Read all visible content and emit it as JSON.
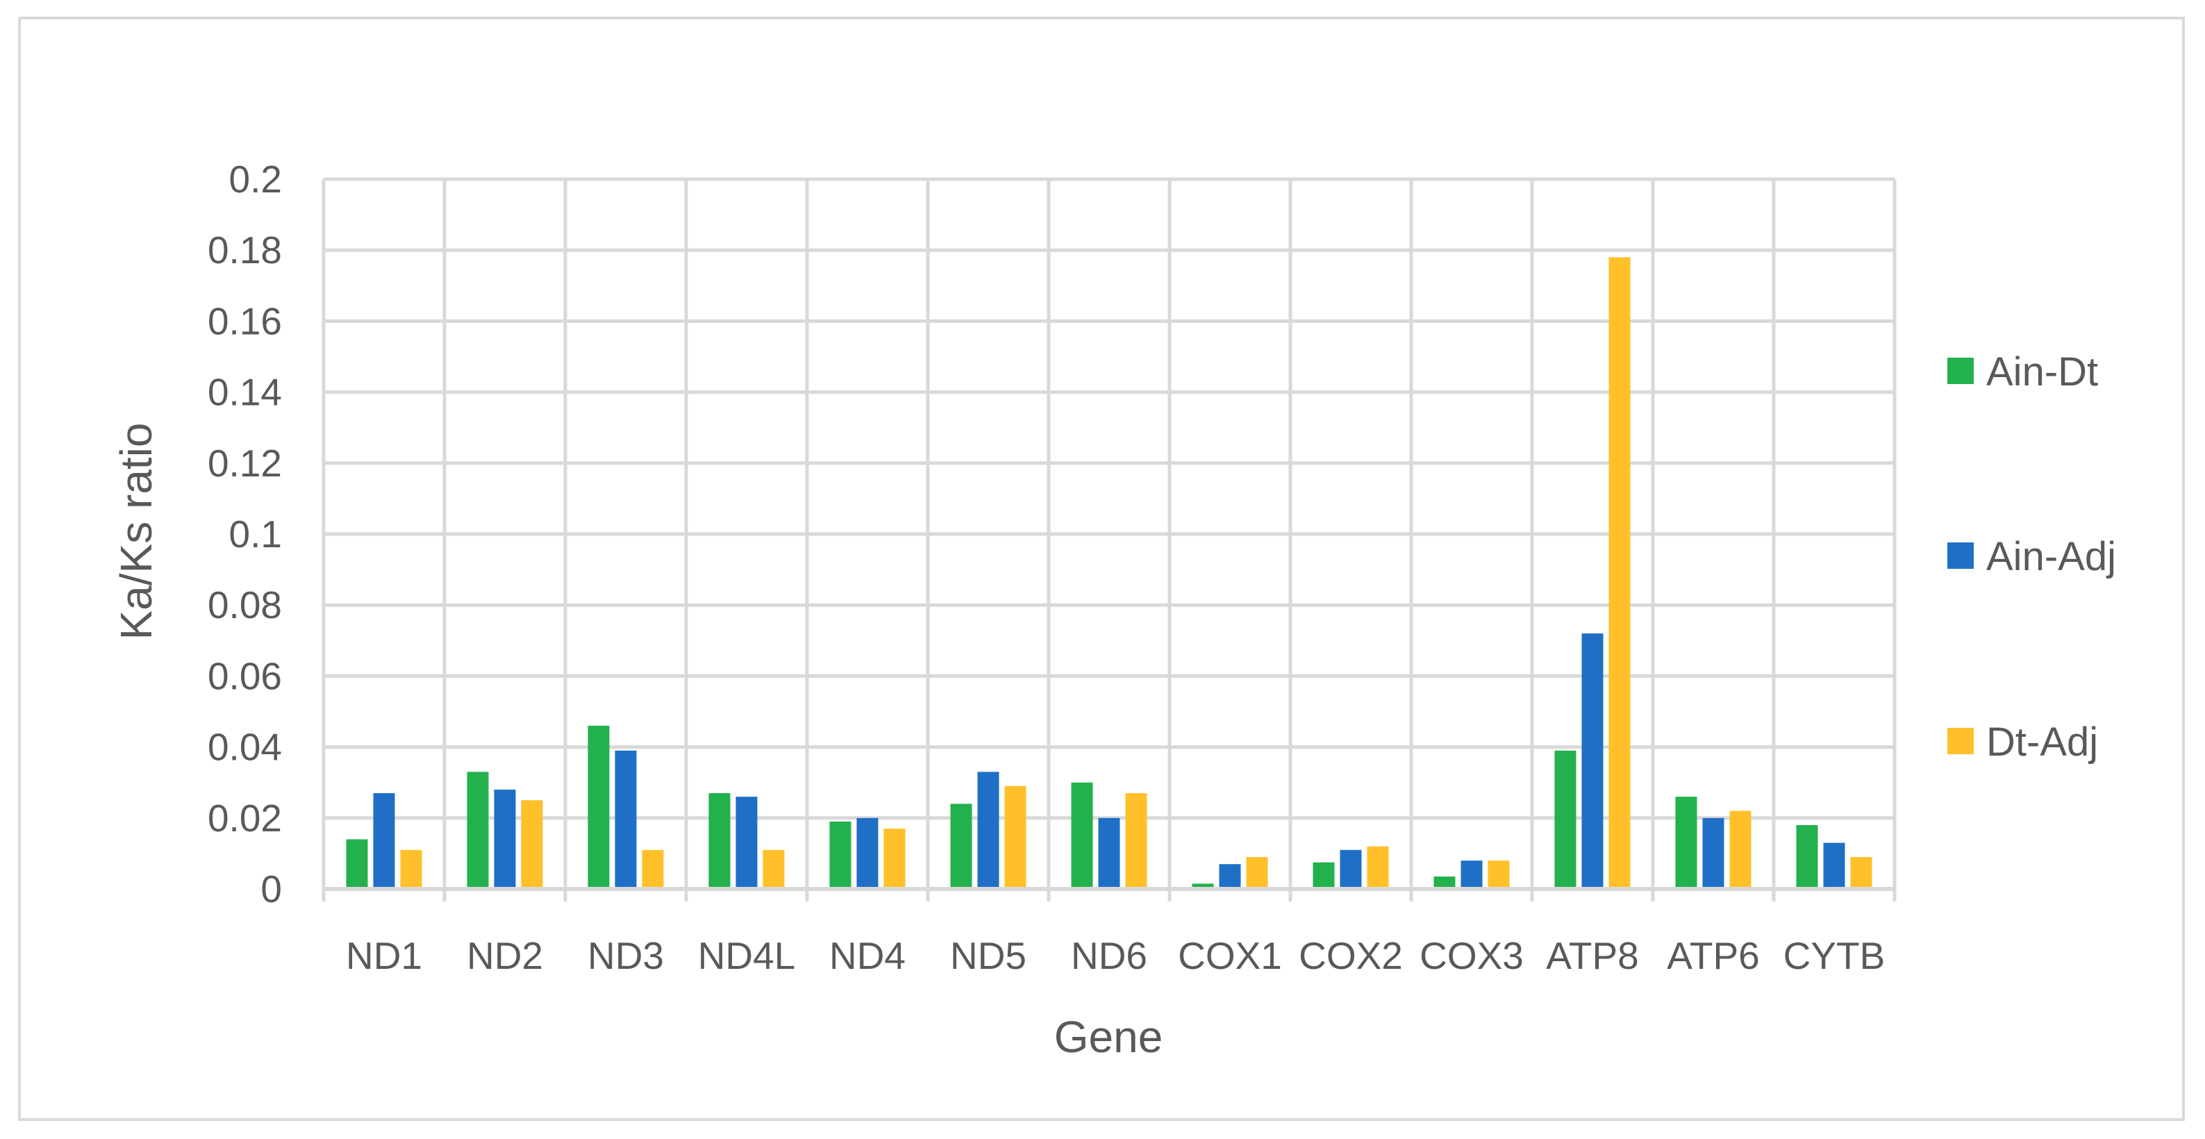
{
  "chart_data": {
    "type": "bar",
    "title": "",
    "xlabel": "Gene",
    "ylabel": "Ka/Ks ratio",
    "ylim": [
      0,
      0.2
    ],
    "y_ticks": [
      "0",
      "0.02",
      "0.04",
      "0.06",
      "0.08",
      "0.1",
      "0.12",
      "0.14",
      "0.16",
      "0.18",
      "0.2"
    ],
    "grid": true,
    "legend_position": "right",
    "categories": [
      "ND1",
      "ND2",
      "ND3",
      "ND4L",
      "ND4",
      "ND5",
      "ND6",
      "COX1",
      "COX2",
      "COX3",
      "ATP8",
      "ATP6",
      "CYTB"
    ],
    "series": [
      {
        "name": "Ain-Dt",
        "color": "#22b14c",
        "values": [
          0.014,
          0.033,
          0.046,
          0.027,
          0.019,
          0.024,
          0.03,
          0.0015,
          0.0075,
          0.0035,
          0.039,
          0.026,
          0.018
        ]
      },
      {
        "name": "Ain-Adj",
        "color": "#1f6fc6",
        "values": [
          0.027,
          0.028,
          0.039,
          0.026,
          0.02,
          0.033,
          0.02,
          0.007,
          0.011,
          0.008,
          0.072,
          0.02,
          0.013
        ]
      },
      {
        "name": "Dt-Adj",
        "color": "#ffc02a",
        "values": [
          0.011,
          0.025,
          0.011,
          0.011,
          0.017,
          0.029,
          0.027,
          0.009,
          0.012,
          0.008,
          0.178,
          0.022,
          0.009
        ]
      }
    ]
  }
}
